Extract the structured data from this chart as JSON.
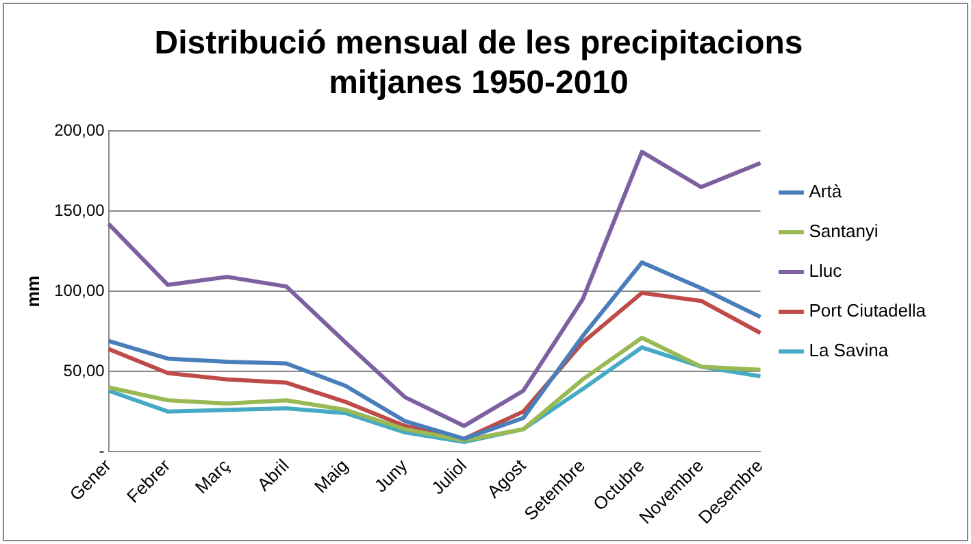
{
  "chart_data": {
    "type": "line",
    "title": "Distribució mensual de les precipitacions mitjanes 1950-2010",
    "ylabel": "mm",
    "categories": [
      "Gener",
      "Febrer",
      "Març",
      "Abril",
      "Maig",
      "Juny",
      "Juliol",
      "Agost",
      "Setembre",
      "Octubre",
      "Novembre",
      "Desembre"
    ],
    "series": [
      {
        "name": "Artà",
        "color": "#4a7ebb",
        "values": [
          69,
          58,
          56,
          55,
          41,
          19,
          8,
          21,
          72,
          118,
          102,
          84
        ]
      },
      {
        "name": "Santanyi",
        "color": "#98b954",
        "values": [
          40,
          32,
          30,
          32,
          26,
          14,
          7,
          14,
          45,
          71,
          53,
          51
        ]
      },
      {
        "name": "Lluc",
        "color": "#7d60a0",
        "values": [
          142,
          104,
          109,
          103,
          68,
          34,
          16,
          38,
          95,
          187,
          165,
          180
        ]
      },
      {
        "name": "Port Ciutadella",
        "color": "#be4b48",
        "values": [
          64,
          49,
          45,
          43,
          31,
          16,
          8,
          25,
          68,
          99,
          94,
          74
        ]
      },
      {
        "name": "La Savina",
        "color": "#46aac5",
        "values": [
          38,
          25,
          26,
          27,
          24,
          12,
          6,
          14,
          39,
          65,
          53,
          47
        ]
      }
    ],
    "ylim": [
      0,
      200
    ],
    "yticks": [
      {
        "value": 0,
        "label": "-"
      },
      {
        "value": 50,
        "label": "50,00"
      },
      {
        "value": 100,
        "label": "100,00"
      },
      {
        "value": 150,
        "label": "150,00"
      },
      {
        "value": 200,
        "label": "200,00"
      }
    ],
    "grid": "y",
    "legend": "right",
    "marker": "none",
    "line_style": "solid"
  }
}
